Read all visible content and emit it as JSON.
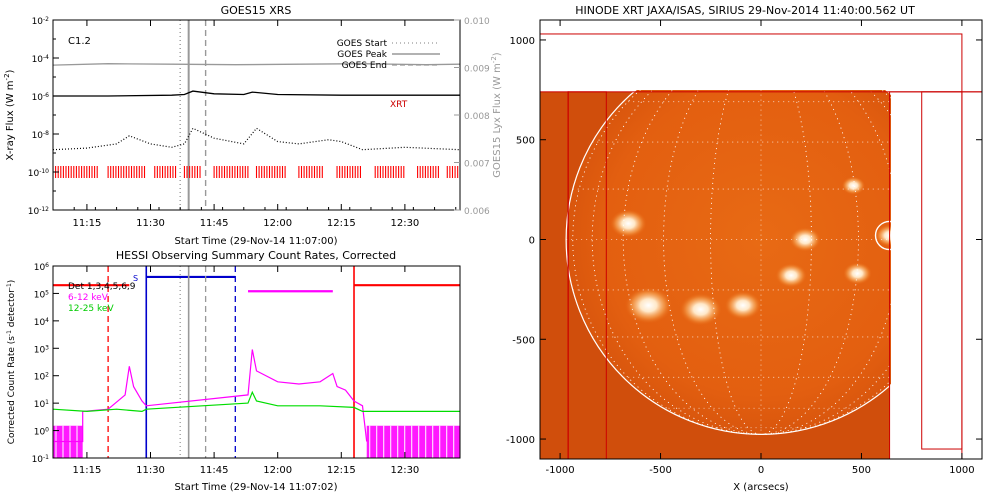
{
  "chart_data": [
    {
      "type": "line",
      "title": "GOES15 XRS",
      "xlabel": "Start Time (29-Nov-14 11:07:00)",
      "ylabel": "X-ray Flux (W m^-2)",
      "ylabel_right": "GOES15 Lyx Flux (W m^-2)",
      "xlim": [
        "11:07",
        "12:43"
      ],
      "x_ticks": [
        "11:15",
        "11:30",
        "11:45",
        "12:00",
        "12:15",
        "12:30"
      ],
      "ylim": [
        1e-12,
        0.01
      ],
      "yscale": "log",
      "y_ticks": [
        "10^-2",
        "10^-4",
        "10^-6",
        "10^-8",
        "10^-10",
        "10^-12"
      ],
      "ylim_right": [
        0.006,
        0.01
      ],
      "y_ticks_right": [
        "0.010",
        "0.009",
        "0.008",
        "0.007",
        "0.006"
      ],
      "annotation": "C1.2",
      "legend": [
        "GOES Start",
        "GOES Peak",
        "GOES End"
      ],
      "legend_position": "top-right",
      "marker_label": "XRT",
      "vlines": [
        {
          "name": "GOES Start",
          "x": "11:37",
          "style": "dotted",
          "color": "#999999"
        },
        {
          "name": "GOES Peak",
          "x": "11:39",
          "style": "solid",
          "color": "#999999"
        },
        {
          "name": "GOES End",
          "x": "11:43",
          "style": "dashed",
          "color": "#999999"
        }
      ],
      "series": [
        {
          "style": "solid",
          "color": "#999999",
          "axis": "right",
          "x": [
            "11:07",
            "11:20",
            "11:35",
            "11:50",
            "12:05",
            "12:20",
            "12:35",
            "12:43"
          ],
          "y": [
            0.00905,
            0.00908,
            0.00907,
            0.00906,
            0.00907,
            0.00908,
            0.00906,
            0.00907
          ]
        },
        {
          "style": "solid",
          "color": "#000000",
          "axis": "left",
          "x": [
            "11:07",
            "11:20",
            "11:35",
            "11:38",
            "11:40",
            "11:45",
            "11:52",
            "11:54",
            "12:00",
            "12:15",
            "12:30",
            "12:43"
          ],
          "y": [
            1e-06,
            1e-06,
            1.1e-06,
            1.2e-06,
            1.8e-06,
            1.3e-06,
            1.2e-06,
            1.6e-06,
            1.2e-06,
            1.1e-06,
            1.1e-06,
            1.1e-06
          ]
        },
        {
          "style": "dotted",
          "color": "#000000",
          "axis": "left",
          "x": [
            "11:07",
            "11:15",
            "11:22",
            "11:25",
            "11:30",
            "11:35",
            "11:38",
            "11:40",
            "11:45",
            "11:52",
            "11:55",
            "12:00",
            "12:05",
            "12:12",
            "12:15",
            "12:20",
            "12:30",
            "12:43"
          ],
          "y": [
            1.5e-09,
            1.8e-09,
            3e-09,
            8e-09,
            3e-09,
            2e-09,
            3e-09,
            2e-08,
            6e-09,
            3e-09,
            2e-08,
            4e-09,
            3e-09,
            5e-09,
            4e-09,
            1.5e-09,
            2e-09,
            1.5e-09
          ]
        }
      ],
      "xrt_marker_intervals": [
        [
          "11:07",
          "11:18"
        ],
        [
          "11:20",
          "11:29"
        ],
        [
          "11:31",
          "11:36"
        ],
        [
          "11:38",
          "11:42"
        ],
        [
          "11:45",
          "11:53"
        ],
        [
          "11:55",
          "12:02"
        ],
        [
          "12:05",
          "12:11"
        ],
        [
          "12:14",
          "12:20"
        ],
        [
          "12:23",
          "12:30"
        ],
        [
          "12:33",
          "12:38"
        ],
        [
          "12:40",
          "12:43"
        ]
      ],
      "grid": false
    },
    {
      "type": "line",
      "title": "HESSI Observing Summary Count Rates, Corrected",
      "xlabel": "Start Time (29-Nov-14 11:07:02)",
      "ylabel": "Corrected Count Rate (s^-1 detector^-1)",
      "xlim": [
        "11:07",
        "12:43"
      ],
      "x_ticks": [
        "11:15",
        "11:30",
        "11:45",
        "12:00",
        "12:15",
        "12:30"
      ],
      "ylim": [
        0.1,
        1000000.0
      ],
      "yscale": "log",
      "y_ticks": [
        "10^6",
        "10^5",
        "10^4",
        "10^3",
        "10^2",
        "10^1",
        "10^0",
        "10^-1"
      ],
      "legend": [
        "Det 1,3,4,5,6,9",
        "6-12 keV",
        "12-25 keV"
      ],
      "legend_position": "top-left",
      "legend_colors": [
        "#000000",
        "#ff00ff",
        "#00dd00"
      ],
      "s_label": "S",
      "vlines": [
        {
          "x": "11:20",
          "style": "dashed",
          "color": "#ff0000"
        },
        {
          "x": "11:29",
          "style": "solid",
          "color": "#0000cc"
        },
        {
          "x": "11:37",
          "style": "dotted",
          "color": "#999999"
        },
        {
          "x": "11:39",
          "style": "solid",
          "color": "#999999"
        },
        {
          "x": "11:43",
          "style": "dashed",
          "color": "#999999"
        },
        {
          "x": "11:50",
          "style": "dashed",
          "color": "#0000cc"
        },
        {
          "x": "12:18",
          "style": "solid",
          "color": "#ff0000"
        }
      ],
      "hbars": [
        {
          "x": [
            "11:07",
            "11:25"
          ],
          "y": 200000.0,
          "color": "#ff0000"
        },
        {
          "x": [
            "11:29",
            "11:50"
          ],
          "y": 400000.0,
          "color": "#0000cc"
        },
        {
          "x": [
            "11:53",
            "12:13"
          ],
          "y": 120000.0,
          "color": "#ff00ff"
        },
        {
          "x": [
            "12:18",
            "12:43"
          ],
          "y": 200000.0,
          "color": "#ff0000"
        }
      ],
      "series": [
        {
          "name": "6-12 keV",
          "color": "#ff00ff",
          "x": [
            "11:07",
            "11:14",
            "11:14",
            "11:20",
            "11:24",
            "11:25",
            "11:26",
            "11:28",
            "11:29",
            "11:53",
            "11:54",
            "11:55",
            "12:00",
            "12:05",
            "12:10",
            "12:13",
            "12:14",
            "12:16",
            "12:18",
            "12:20",
            "12:21"
          ],
          "y": [
            0.4,
            0.4,
            5,
            6,
            20,
            220,
            40,
            12,
            8,
            20,
            900,
            150,
            60,
            50,
            60,
            120,
            40,
            30,
            12,
            8,
            0.4
          ]
        },
        {
          "name": "12-25 keV",
          "color": "#00dd00",
          "x": [
            "11:07",
            "11:15",
            "11:22",
            "11:28",
            "11:29",
            "11:53",
            "11:54",
            "11:55",
            "12:00",
            "12:10",
            "12:18",
            "12:20",
            "12:30",
            "12:43"
          ],
          "y": [
            6,
            5,
            6,
            5,
            6,
            10,
            25,
            12,
            8,
            8,
            7,
            5,
            5,
            5
          ]
        }
      ],
      "attenuator_intervals": [
        [
          "11:07",
          "11:14"
        ],
        [
          "12:21",
          "12:43"
        ]
      ],
      "grid": false
    },
    {
      "type": "heatmap",
      "title": "HINODE XRT JAXA/ISAS, SIRIUS 29-Nov-2014 11:40:00.562 UT",
      "xlabel": "X (arcsecs)",
      "ylabel": "",
      "xlim": [
        -1100,
        1100
      ],
      "ylim": [
        -1100,
        1100
      ],
      "x_ticks": [
        -1000,
        -500,
        0,
        500,
        1000
      ],
      "y_ticks": [
        1000,
        500,
        0,
        -500,
        -1000
      ],
      "solar_radius_arcsec": 970,
      "image_extent": {
        "x": [
          -1100,
          640
        ],
        "y": [
          -1100,
          740
        ]
      },
      "flare_circle": {
        "x": 640,
        "y": 20,
        "r": 70
      },
      "active_regions": [
        {
          "x": -660,
          "y": 80,
          "size": 70
        },
        {
          "x": -560,
          "y": -330,
          "size": 90
        },
        {
          "x": -300,
          "y": -350,
          "size": 80
        },
        {
          "x": -90,
          "y": -330,
          "size": 70
        },
        {
          "x": 150,
          "y": -180,
          "size": 60
        },
        {
          "x": 220,
          "y": 0,
          "size": 60
        },
        {
          "x": 480,
          "y": -170,
          "size": 55
        },
        {
          "x": 460,
          "y": 270,
          "size": 45
        },
        {
          "x": 640,
          "y": 20,
          "size": 55
        }
      ],
      "fov_boxes": [
        {
          "x": [
            -1100,
            1000
          ],
          "y": [
            1030,
            -1100
          ]
        },
        {
          "x": [
            -960,
            1100
          ],
          "y": [
            740,
            -1100
          ]
        },
        {
          "x": [
            640,
            1100
          ],
          "y": [
            740,
            -1100
          ]
        },
        {
          "x": [
            800,
            1000
          ],
          "y": [
            740,
            -1050
          ]
        },
        {
          "x": [
            -1100,
            -960
          ],
          "y": [
            740,
            -1100
          ]
        },
        {
          "x": [
            -960,
            -770
          ],
          "y": [
            740,
            -1100
          ]
        }
      ],
      "colors": {
        "disk": "#e0600f",
        "background": "#d04e0c",
        "limb": "#ffffff",
        "box": "#cc0000"
      }
    }
  ]
}
